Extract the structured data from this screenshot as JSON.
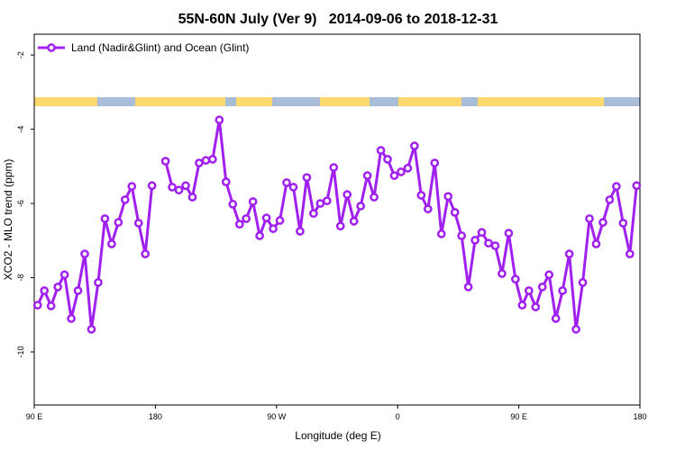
{
  "chart_data": {
    "type": "line",
    "title": "55N-60N July (Ver 9)   2014-09-06 to 2018-12-31",
    "x_label": "Longitude (deg E)",
    "y_label": "XCO2 - MLO trend (ppm)",
    "xlim": [
      90,
      540
    ],
    "ylim": [
      -11.43,
      -1.44
    ],
    "xticks": [
      {
        "value": 90,
        "label": "90 E"
      },
      180,
      {
        "value": 270,
        "label": "90 W"
      },
      {
        "value": 360,
        "label": "0"
      },
      {
        "value": 450,
        "label": "90 E"
      },
      {
        "value": 540,
        "label": "180"
      }
    ],
    "yticks": [
      -2,
      -4,
      -6,
      -8,
      -10
    ],
    "legend": "top-left",
    "x": [
      92.5,
      97.5,
      102.5,
      107.5,
      112.5,
      117.5,
      122.5,
      127.5,
      132.5,
      137.5,
      142.5,
      147.5,
      152.5,
      157.5,
      162.5,
      167.5,
      172.5,
      177.5,
      182.5,
      187.5,
      192.5,
      197.5,
      202.5,
      207.5,
      212.5,
      217.5,
      222.5,
      227.5,
      232.5,
      237.5,
      242.5,
      247.5,
      252.5,
      257.5,
      262.5,
      267.5,
      272.5,
      277.5,
      282.5,
      287.5,
      292.5,
      297.5,
      302.5,
      307.5,
      312.5,
      317.5,
      322.5,
      327.5,
      332.5,
      337.5,
      342.5,
      347.5,
      352.5,
      357.5,
      362.5,
      367.5,
      372.5,
      377.5,
      382.5,
      387.5,
      392.5,
      397.5,
      402.5,
      407.5,
      412.5,
      417.5,
      422.5,
      427.5,
      432.5,
      437.5,
      442.5,
      447.5,
      452.5,
      457.5,
      462.5,
      467.5,
      472.5,
      477.5,
      482.5,
      487.5,
      492.5,
      497.5,
      502.5,
      507.5,
      512.5,
      517.5,
      522.5,
      527.5,
      532.5,
      537.5
    ],
    "series": [
      {
        "name": "Land (Nadir&Glint) and Ocean (Glint)",
        "color": "#a020f0",
        "values": [
          -8.74,
          -8.35,
          -8.76,
          -8.25,
          -7.92,
          -9.1,
          -8.35,
          -7.36,
          -9.39,
          -8.13,
          -6.41,
          -7.09,
          -6.51,
          -5.9,
          -5.54,
          -6.53,
          -7.36,
          -5.52,
          null,
          -4.86,
          -5.56,
          -5.64,
          -5.52,
          -5.83,
          -4.91,
          -4.84,
          -4.81,
          -3.75,
          -5.42,
          -6.02,
          -6.56,
          -6.41,
          -5.95,
          -6.87,
          -6.39,
          -6.68,
          -6.46,
          -5.44,
          -5.56,
          -6.75,
          -5.3,
          -6.27,
          -6.0,
          -5.93,
          -5.03,
          -6.61,
          -5.76,
          -6.48,
          -6.07,
          -5.25,
          -5.83,
          -4.57,
          -4.81,
          -5.25,
          -5.15,
          -5.05,
          -4.45,
          -5.78,
          -6.15,
          -4.91,
          -6.82,
          -5.81,
          -6.24,
          -6.87,
          -8.25,
          -6.99,
          -6.78,
          -7.07,
          -7.14,
          -7.89,
          -6.8,
          -8.04,
          -8.74,
          -8.35,
          -8.79,
          -8.25,
          -7.92,
          -9.1,
          -8.35,
          -7.36,
          -9.39,
          -8.13,
          -6.41,
          -7.09,
          -6.51,
          -5.9,
          -5.54,
          -6.53,
          -7.36,
          -5.52
        ]
      }
    ]
  }
}
